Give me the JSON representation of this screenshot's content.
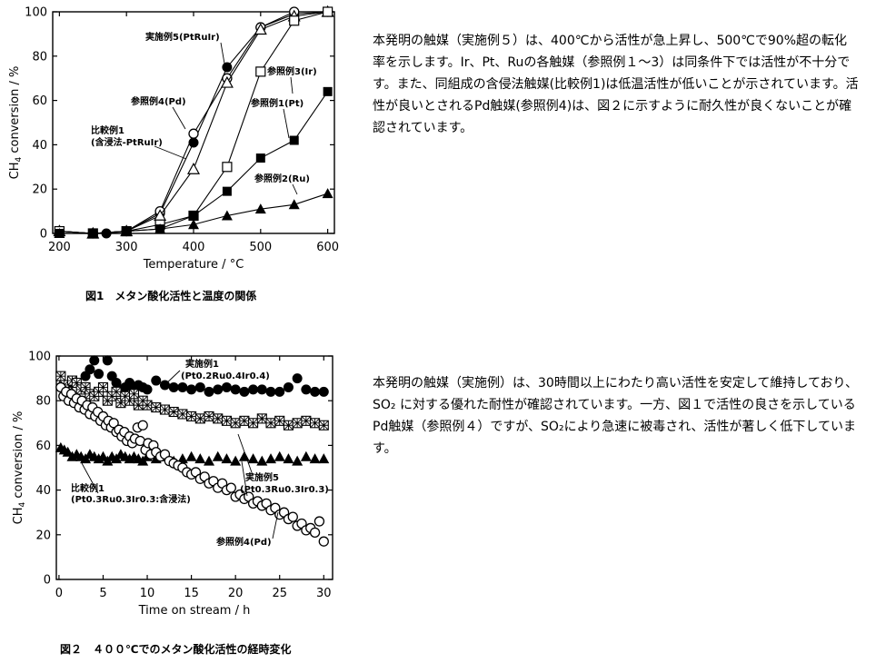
{
  "chart_data": [
    {
      "type": "scatter",
      "title": "",
      "xlabel": "Temperature / °C",
      "ylabel": "CH4 conversion / %",
      "xlim": [
        190,
        610
      ],
      "ylim": [
        0,
        100
      ],
      "xticks": [
        200,
        300,
        400,
        500,
        600
      ],
      "yticks": [
        0,
        20,
        40,
        60,
        80,
        100
      ],
      "grid": false,
      "series": [
        {
          "name": "実施例5(PtRuIr)",
          "marker": "circle-filled",
          "x": [
            200,
            250,
            270,
            300,
            350,
            400,
            450,
            500,
            550,
            600
          ],
          "y": [
            1,
            0,
            0,
            1,
            9,
            41,
            75,
            93,
            99,
            100
          ]
        },
        {
          "name": "参照例4(Pd)",
          "marker": "circle-open",
          "x": [
            200,
            250,
            300,
            350,
            400,
            450,
            500,
            550,
            600
          ],
          "y": [
            1,
            0,
            1,
            10,
            45,
            70,
            93,
            100,
            100
          ]
        },
        {
          "name": "比較例1(含浸法-PtRuIr)",
          "marker": "triangle-open",
          "x": [
            200,
            250,
            300,
            350,
            400,
            450,
            500,
            550,
            600
          ],
          "y": [
            1,
            0,
            1,
            8,
            29,
            68,
            92,
            98,
            100
          ]
        },
        {
          "name": "参照例3(Ir)",
          "marker": "square-open",
          "x": [
            200,
            250,
            300,
            350,
            400,
            450,
            500,
            550,
            600
          ],
          "y": [
            1,
            0,
            1,
            4,
            8,
            30,
            73,
            96,
            100
          ]
        },
        {
          "name": "参照例1(Pt)",
          "marker": "square-filled",
          "x": [
            200,
            250,
            300,
            350,
            400,
            450,
            500,
            550,
            600
          ],
          "y": [
            0,
            0,
            1,
            2,
            8,
            19,
            34,
            42,
            64
          ]
        },
        {
          "name": "参照例2(Ru)",
          "marker": "triangle-filled",
          "x": [
            200,
            250,
            300,
            350,
            400,
            450,
            500,
            550,
            600
          ],
          "y": [
            0,
            0,
            1,
            2,
            4,
            8,
            11,
            13,
            18
          ]
        }
      ],
      "annotations": [
        {
          "text": "実施例5(PtRuIr)"
        },
        {
          "text": "参照例3(Ir)"
        },
        {
          "text": "参照例4(Pd)"
        },
        {
          "text": "参照例1(Pt)"
        },
        {
          "text": "比較例1"
        },
        {
          "text": "(含浸法-PtRuIr)"
        },
        {
          "text": "参照例2(Ru)"
        }
      ]
    },
    {
      "type": "scatter",
      "title": "",
      "xlabel": "Time on stream / h",
      "ylabel": "CH4 conversion / %",
      "xlim": [
        -0.3,
        31
      ],
      "ylim": [
        0,
        100
      ],
      "xticks": [
        0,
        5,
        10,
        15,
        20,
        25,
        30
      ],
      "yticks": [
        0,
        20,
        40,
        60,
        80,
        100
      ],
      "grid": false,
      "series": [
        {
          "name": "実施例1(Pt0.2Ru0.4Ir0.4)",
          "marker": "circle-filled",
          "x": [
            0.2,
            0.6,
            1,
            1.5,
            2,
            2.5,
            3,
            3.5,
            4,
            4.5,
            5,
            5.5,
            6,
            6.5,
            7,
            7.5,
            8,
            8.5,
            9,
            9.5,
            10,
            11,
            12,
            13,
            14,
            15,
            16,
            17,
            18,
            19,
            20,
            21,
            22,
            23,
            24,
            25,
            26,
            27,
            28,
            29,
            30
          ],
          "y": [
            86,
            87,
            85,
            88,
            88,
            86,
            91,
            94,
            98,
            92,
            86,
            98,
            91,
            88,
            85,
            86,
            88,
            85,
            87,
            86,
            85,
            89,
            87,
            86,
            86,
            85,
            86,
            84,
            85,
            86,
            85,
            84,
            85,
            85,
            84,
            84,
            86,
            90,
            85,
            84,
            84
          ]
        },
        {
          "name": "実施例5(Pt0.3Ru0.3Ir0.3)",
          "marker": "square-cross",
          "x": [
            0.2,
            0.6,
            1,
            1.5,
            2,
            2.5,
            3,
            3.5,
            4,
            4.5,
            5,
            5.5,
            6,
            6.5,
            7,
            7.5,
            8,
            8.5,
            9,
            9.5,
            10,
            11,
            12,
            13,
            14,
            15,
            16,
            17,
            18,
            19,
            20,
            21,
            22,
            23,
            24,
            25,
            26,
            27,
            28,
            29,
            30
          ],
          "y": [
            91,
            87,
            84,
            89,
            88,
            85,
            86,
            83,
            82,
            84,
            86,
            80,
            82,
            84,
            79,
            82,
            80,
            83,
            78,
            80,
            78,
            77,
            76,
            75,
            74,
            73,
            72,
            73,
            72,
            71,
            70,
            71,
            70,
            72,
            70,
            71,
            69,
            70,
            71,
            70,
            69
          ]
        },
        {
          "name": "比較例1(Pt0.3Ru0.3Ir0.3:含浸法)",
          "marker": "triangle-filled",
          "x": [
            0.2,
            0.6,
            1,
            1.5,
            2,
            2.5,
            3,
            3.5,
            4,
            4.5,
            5,
            5.5,
            6,
            6.5,
            7,
            7.5,
            8,
            8.5,
            9,
            9.5,
            10,
            11,
            12,
            13,
            14,
            15,
            16,
            17,
            18,
            19,
            20,
            21,
            22,
            23,
            24,
            25,
            26,
            27,
            28,
            29,
            30
          ],
          "y": [
            59,
            58,
            57,
            55,
            56,
            55,
            54,
            56,
            55,
            54,
            55,
            53,
            55,
            54,
            56,
            55,
            54,
            55,
            54,
            53,
            55,
            54,
            55,
            53,
            54,
            55,
            54,
            53,
            55,
            54,
            53,
            55,
            54,
            53,
            54,
            55,
            54,
            53,
            55,
            54,
            54
          ]
        },
        {
          "name": "参照例4(Pd)",
          "marker": "circle-open",
          "x": [
            0.2,
            0.5,
            0.8,
            1.1,
            1.4,
            1.7,
            2,
            2.3,
            2.6,
            2.9,
            3.2,
            3.5,
            3.8,
            4.1,
            4.4,
            4.7,
            5,
            5.3,
            5.6,
            5.9,
            6.2,
            6.5,
            6.8,
            7.1,
            7.4,
            7.7,
            8,
            8.3,
            8.6,
            8.9,
            9.2,
            9.5,
            9.8,
            10.1,
            10.4,
            10.7,
            11,
            11.5,
            12,
            12.5,
            13,
            13.5,
            14,
            14.5,
            15,
            15.5,
            16,
            16.5,
            17,
            17.5,
            18,
            18.5,
            19,
            19.5,
            20,
            20.5,
            21,
            21.5,
            22,
            22.5,
            23,
            23.5,
            24,
            24.5,
            25,
            25.5,
            26,
            26.5,
            27,
            27.5,
            28,
            28.5,
            29,
            29.5,
            30
          ],
          "y": [
            86,
            82,
            84,
            80,
            83,
            79,
            81,
            77,
            80,
            76,
            78,
            74,
            77,
            73,
            75,
            71,
            73,
            69,
            71,
            68,
            70,
            66,
            67,
            64,
            66,
            62,
            64,
            61,
            63,
            68,
            62,
            69,
            58,
            61,
            56,
            60,
            57,
            55,
            56,
            53,
            52,
            51,
            50,
            48,
            47,
            48,
            45,
            46,
            43,
            44,
            41,
            43,
            40,
            41,
            37,
            38,
            36,
            37,
            34,
            35,
            33,
            34,
            31,
            32,
            29,
            30,
            27,
            28,
            24,
            25,
            22,
            23,
            21,
            26,
            17
          ]
        }
      ],
      "annotations": [
        {
          "text": "実施例1"
        },
        {
          "text": "(Pt0.2Ru0.4Ir0.4)"
        },
        {
          "text": "比較例1"
        },
        {
          "text": "(Pt0.3Ru0.3Ir0.3:含浸法)"
        },
        {
          "text": "実施例5"
        },
        {
          "text": "(Pt0.3Ru0.3Ir0.3)"
        },
        {
          "text": "参照例4(Pd)"
        }
      ]
    }
  ],
  "captions": {
    "fig1": "図1　メタン酸化活性と温度の関係",
    "fig2": "図２　４００℃でのメタン酸化活性の経時変化"
  },
  "paragraphs": {
    "p1": "本発明の触媒（実施例５）は、400℃から活性が急上昇し、500℃で90%超の転化率を示します。Ir、Pt、Ruの各触媒（参照例１～3）は同条件下では活性が不十分です。また、同組成の含侵法触媒(比較例1)は低温活性が低いことが示されています。活性が良いとされるPd触媒(参照例4)は、図２に示すように耐久性が良くないことが確認されています。",
    "p2": "本発明の触媒（実施例）は、30時間以上にわたり高い活性を安定して維持しており、SO₂ に対する優れた耐性が確認されています。一方、図１で活性の良さを示しているPd触媒（参照例４）ですが、SO₂により急速に被毒され、活性が著しく低下しています。"
  }
}
